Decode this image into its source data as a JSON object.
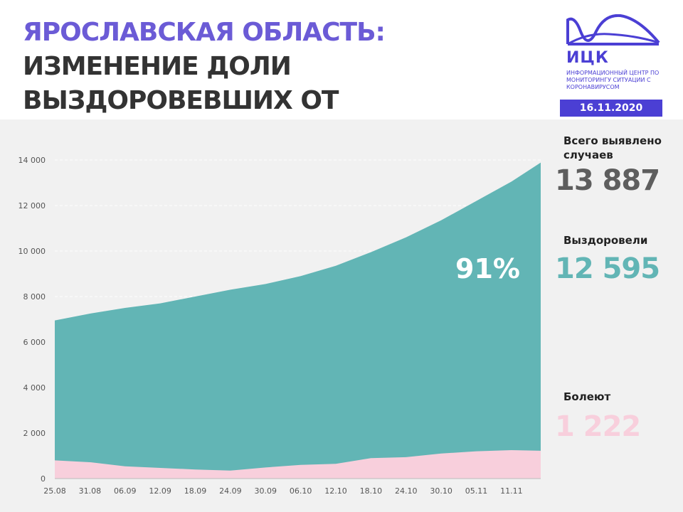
{
  "header": {
    "title_accent": "Ярославская область:",
    "title_rest": "изменение доли выздоровевших от коронавируса"
  },
  "logo": {
    "name": "ИЦК",
    "subtitle": "Информационный центр по мониторингу ситуации с коронавирусом",
    "color": "#4b3fd4"
  },
  "date": "16.11.2020",
  "stats": {
    "total": {
      "label": "Всего выявлено случаев",
      "value": "13 887",
      "color": "#5e5e5e"
    },
    "recovered": {
      "label": "Выздоровели",
      "value": "12 595",
      "color": "#62b5b5"
    },
    "sick": {
      "label": "Болеют",
      "value": "1 222",
      "color": "#f8cfdc"
    }
  },
  "percent_label": "91%",
  "chart_data": {
    "type": "area",
    "x_tick_labels": [
      "25.08",
      "31.08",
      "06.09",
      "12.09",
      "18.09",
      "24.09",
      "30.09",
      "06.10",
      "12.10",
      "18.10",
      "24.10",
      "30.10",
      "05.11",
      "11.11"
    ],
    "x_start": "25.08",
    "x_end": "16.11",
    "ylim": [
      0,
      14000
    ],
    "y_ticks": [
      0,
      2000,
      4000,
      6000,
      8000,
      10000,
      12000,
      14000
    ],
    "y_tick_labels": [
      "0",
      "2 000",
      "4 000",
      "6 000",
      "8 000",
      "10 000",
      "12 000",
      "14 000"
    ],
    "grid": true,
    "series": [
      {
        "name": "Всего выявлено случаев",
        "color": "#62b5b5",
        "x": [
          "25.08",
          "31.08",
          "06.09",
          "12.09",
          "18.09",
          "24.09",
          "30.09",
          "06.10",
          "12.10",
          "18.10",
          "24.10",
          "30.10",
          "05.11",
          "11.11",
          "16.11"
        ],
        "values": [
          6950,
          7250,
          7500,
          7700,
          8000,
          8300,
          8550,
          8900,
          9350,
          9950,
          10600,
          11350,
          12200,
          13050,
          13887
        ]
      },
      {
        "name": "Болеют",
        "color": "#f8cfdc",
        "x": [
          "25.08",
          "31.08",
          "06.09",
          "12.09",
          "18.09",
          "24.09",
          "30.09",
          "06.10",
          "12.10",
          "18.10",
          "24.10",
          "30.10",
          "05.11",
          "11.11",
          "16.11"
        ],
        "values": [
          800,
          720,
          540,
          470,
          400,
          350,
          490,
          600,
          650,
          900,
          940,
          1100,
          1200,
          1250,
          1222
        ]
      }
    ]
  }
}
